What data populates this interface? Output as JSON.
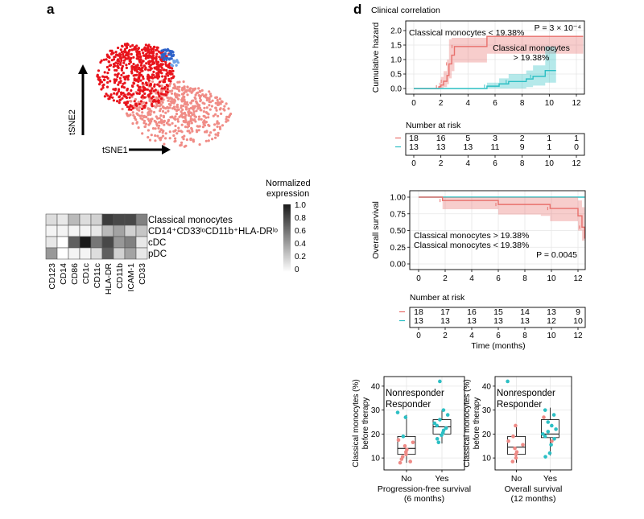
{
  "panels": {
    "a": "a",
    "d": "d"
  },
  "tsne": {
    "xlabel": "tSNE1",
    "ylabel": "tSNE2",
    "colors": {
      "classical": "#e8141c",
      "intermediate": "#f08c86",
      "cdc": "#2e62c9",
      "pdc": "#6fa3e8"
    }
  },
  "heatmap": {
    "legend_title_1": "Normalized",
    "legend_title_2": "expression",
    "legend_ticks": [
      "1.0",
      "0.8",
      "0.6",
      "0.4",
      "0.2",
      "0"
    ],
    "rows": [
      {
        "label": "Classical monocytes",
        "color": "#d91a1a"
      },
      {
        "label": "CD14⁺CD33ˡᵒCD11b⁺HLA-DRˡᵒ",
        "color": "#ee8a86"
      },
      {
        "label": "cDC",
        "color": "#2e62c9"
      },
      {
        "label": "pDC",
        "color": "#6fa3e8"
      }
    ],
    "columns": [
      "CD123",
      "CD14",
      "CD86",
      "CD1c",
      "CD11c",
      "HLA-DR",
      "CD11b",
      "ICAM-1",
      "CD33"
    ],
    "values": [
      [
        0.15,
        0.1,
        0.3,
        0.15,
        0.2,
        0.85,
        0.8,
        0.8,
        0.55
      ],
      [
        0.05,
        0.05,
        0.05,
        0.05,
        0.1,
        0.3,
        0.4,
        0.2,
        0.25
      ],
      [
        0.1,
        0.0,
        0.7,
        1.0,
        0.6,
        0.8,
        0.45,
        0.55,
        0.1
      ],
      [
        0.45,
        0.0,
        0.05,
        0.05,
        0.15,
        0.7,
        0.2,
        0.4,
        0.1
      ]
    ]
  },
  "clinical_title": "Clinical correlation",
  "chart_data": [
    {
      "type": "line",
      "subtype": "kaplan-meier-cumulative-hazard",
      "ylabel": "Cumulative hazard",
      "xlim": [
        0,
        12
      ],
      "ylim": [
        0,
        2.0
      ],
      "xticks": [
        "0",
        "2",
        "4",
        "6",
        "8",
        "10",
        "12"
      ],
      "yticks": [
        "0.0",
        "0.5",
        "1.0",
        "1.5",
        "2.0"
      ],
      "annotation": "P = 3 × 10⁻⁴",
      "series": [
        {
          "name": "Classical monocytes < 19.38%",
          "color": "#e8706c",
          "x": [
            0,
            1.85,
            2.0,
            2.2,
            2.45,
            2.6,
            2.8,
            3.0,
            5.4,
            12.5
          ],
          "y": [
            0,
            0.06,
            0.12,
            0.25,
            0.45,
            0.85,
            1.15,
            1.45,
            1.8,
            1.8
          ],
          "ci_upper": [
            0,
            0.2,
            0.4,
            0.6,
            1.0,
            1.7,
            1.75,
            1.75,
            1.8,
            1.8
          ],
          "ci_lower": [
            0,
            0.0,
            0.0,
            0.05,
            0.15,
            0.35,
            0.6,
            0.9,
            1.2,
            1.2
          ]
        },
        {
          "name": "Classical monocytes > 19.38%",
          "color": "#2cbfc4",
          "x": [
            0,
            5.4,
            6.3,
            7.0,
            8.3,
            8.8,
            9.7,
            10.5
          ],
          "y": [
            0,
            0.08,
            0.16,
            0.24,
            0.33,
            0.42,
            0.62,
            0.62
          ],
          "ci_upper": [
            0,
            0.2,
            0.35,
            0.5,
            0.62,
            0.8,
            1.45,
            1.45
          ],
          "ci_lower": [
            0,
            0,
            0,
            0,
            0.05,
            0.1,
            0.2,
            0.2
          ]
        }
      ],
      "risk_table": {
        "title": "Number at risk",
        "times": [
          0,
          2,
          4,
          6,
          8,
          10,
          12
        ],
        "rows": [
          {
            "color": "#e8706c",
            "values": [
              "18",
              "16",
              "5",
              "3",
              "2",
              "1",
              "1"
            ]
          },
          {
            "color": "#2cbfc4",
            "values": [
              "13",
              "13",
              "13",
              "11",
              "9",
              "1",
              "0"
            ]
          }
        ]
      }
    },
    {
      "type": "line",
      "subtype": "kaplan-meier-overall-survival",
      "ylabel": "Overall survival",
      "xlabel": "Time (months)",
      "xlim": [
        0,
        12
      ],
      "ylim": [
        0,
        1.0
      ],
      "xticks": [
        "0",
        "2",
        "4",
        "6",
        "8",
        "10",
        "12"
      ],
      "yticks": [
        "0.00",
        "0.25",
        "0.50",
        "0.75",
        "1.00"
      ],
      "annotation": "P = 0.0045",
      "series": [
        {
          "name": "Classical monocytes > 19.38%",
          "color": "#2cbfc4",
          "x": [
            0,
            12.5
          ],
          "y": [
            1.0,
            1.0
          ]
        },
        {
          "name": "Classical monocytes < 19.38%",
          "color": "#e8706c",
          "x": [
            0,
            1.8,
            5.5,
            6.0,
            9.2,
            9.9,
            12.0,
            12.3,
            12.5
          ],
          "y": [
            1.0,
            0.95,
            0.95,
            0.89,
            0.89,
            0.83,
            0.72,
            0.55,
            0.38
          ],
          "ci_upper": [
            1.0,
            1.0,
            1.0,
            1.0,
            1.0,
            1.0,
            0.95,
            0.85,
            0.75
          ],
          "ci_lower": [
            1.0,
            0.82,
            0.82,
            0.74,
            0.72,
            0.64,
            0.5,
            0.35,
            0.2
          ]
        }
      ],
      "risk_table": {
        "title": "Number at risk",
        "times": [
          0,
          2,
          4,
          6,
          8,
          10,
          12
        ],
        "rows": [
          {
            "color": "#e8706c",
            "values": [
              "18",
              "17",
              "16",
              "15",
              "14",
              "13",
              "9"
            ]
          },
          {
            "color": "#2cbfc4",
            "values": [
              "13",
              "13",
              "13",
              "13",
              "13",
              "12",
              "10"
            ]
          }
        ]
      }
    },
    {
      "type": "box",
      "ylabel_1": "Classical monocytes (%)",
      "ylabel_2": "before therapy",
      "xlabel_1": "Progression-free survival",
      "xlabel_2": "(6 months)",
      "categories": [
        "No",
        "Yes"
      ],
      "ylim": [
        5,
        44
      ],
      "yticks": [
        "10",
        "20",
        "30",
        "40"
      ],
      "legend": [
        {
          "label": "Nonresponder",
          "color": "#ee8a86"
        },
        {
          "label": "Responder",
          "color": "#2cbfc4"
        }
      ],
      "boxes": [
        {
          "q1": 11.5,
          "median": 14,
          "q3": 19,
          "whisker_low": 8,
          "whisker_high": 28
        },
        {
          "q1": 20,
          "median": 23,
          "q3": 26,
          "whisker_low": 16,
          "whisker_high": 30
        }
      ],
      "points": [
        {
          "cat": 0,
          "y": 29,
          "color": "#2cbfc4"
        },
        {
          "cat": 0,
          "y": 27,
          "color": "#2cbfc4"
        },
        {
          "cat": 0,
          "y": 19,
          "color": "#2cbfc4"
        },
        {
          "cat": 0,
          "y": 17.5,
          "color": "#ee8a86"
        },
        {
          "cat": 0,
          "y": 16.5,
          "color": "#ee8a86"
        },
        {
          "cat": 0,
          "y": 15,
          "color": "#ee8a86"
        },
        {
          "cat": 0,
          "y": 13.5,
          "color": "#ee8a86"
        },
        {
          "cat": 0,
          "y": 12.5,
          "color": "#ee8a86"
        },
        {
          "cat": 0,
          "y": 11.5,
          "color": "#ee8a86"
        },
        {
          "cat": 0,
          "y": 10.5,
          "color": "#ee8a86"
        },
        {
          "cat": 0,
          "y": 9.5,
          "color": "#ee8a86"
        },
        {
          "cat": 0,
          "y": 8.5,
          "color": "#ee8a86"
        },
        {
          "cat": 0,
          "y": 8,
          "color": "#ee8a86"
        },
        {
          "cat": 1,
          "y": 42,
          "color": "#2cbfc4"
        },
        {
          "cat": 1,
          "y": 30,
          "color": "#2cbfc4"
        },
        {
          "cat": 1,
          "y": 28,
          "color": "#2cbfc4"
        },
        {
          "cat": 1,
          "y": 26,
          "color": "#2cbfc4"
        },
        {
          "cat": 1,
          "y": 24.5,
          "color": "#2cbfc4"
        },
        {
          "cat": 1,
          "y": 23.5,
          "color": "#2cbfc4"
        },
        {
          "cat": 1,
          "y": 22.5,
          "color": "#2cbfc4"
        },
        {
          "cat": 1,
          "y": 21.5,
          "color": "#2cbfc4"
        },
        {
          "cat": 1,
          "y": 20.5,
          "color": "#2cbfc4"
        },
        {
          "cat": 1,
          "y": 19.5,
          "color": "#2cbfc4"
        },
        {
          "cat": 1,
          "y": 18,
          "color": "#2cbfc4"
        },
        {
          "cat": 1,
          "y": 16.5,
          "color": "#2cbfc4"
        }
      ]
    },
    {
      "type": "box",
      "ylabel_1": "Classical monocytes (%)",
      "ylabel_2": "before therapy",
      "xlabel_1": "Overall survival",
      "xlabel_2": "(12 months)",
      "categories": [
        "No",
        "Yes"
      ],
      "ylim": [
        5,
        44
      ],
      "yticks": [
        "10",
        "20",
        "30",
        "40"
      ],
      "legend": [
        {
          "label": "Nonresponder",
          "color": "#ee8a86"
        },
        {
          "label": "Responder",
          "color": "#2cbfc4"
        }
      ],
      "boxes": [
        {
          "q1": 11.5,
          "median": 14.5,
          "q3": 19,
          "whisker_low": 8,
          "whisker_high": 24
        },
        {
          "q1": 18.5,
          "median": 20,
          "q3": 26,
          "whisker_low": 11,
          "whisker_high": 31
        }
      ],
      "points": [
        {
          "cat": 0,
          "y": 42,
          "color": "#2cbfc4"
        },
        {
          "cat": 0,
          "y": 23.5,
          "color": "#ee8a86"
        },
        {
          "cat": 0,
          "y": 19,
          "color": "#ee8a86"
        },
        {
          "cat": 0,
          "y": 17,
          "color": "#ee8a86"
        },
        {
          "cat": 0,
          "y": 15.5,
          "color": "#ee8a86"
        },
        {
          "cat": 0,
          "y": 14,
          "color": "#ee8a86"
        },
        {
          "cat": 0,
          "y": 12.5,
          "color": "#ee8a86"
        },
        {
          "cat": 0,
          "y": 11.5,
          "color": "#ee8a86"
        },
        {
          "cat": 0,
          "y": 10,
          "color": "#ee8a86"
        },
        {
          "cat": 0,
          "y": 8.5,
          "color": "#ee8a86"
        },
        {
          "cat": 1,
          "y": 30,
          "color": "#2cbfc4"
        },
        {
          "cat": 1,
          "y": 28,
          "color": "#2cbfc4"
        },
        {
          "cat": 1,
          "y": 27,
          "color": "#ee8a86"
        },
        {
          "cat": 1,
          "y": 25,
          "color": "#2cbfc4"
        },
        {
          "cat": 1,
          "y": 23.5,
          "color": "#2cbfc4"
        },
        {
          "cat": 1,
          "y": 22,
          "color": "#2cbfc4"
        },
        {
          "cat": 1,
          "y": 21,
          "color": "#2cbfc4"
        },
        {
          "cat": 1,
          "y": 20,
          "color": "#2cbfc4"
        },
        {
          "cat": 1,
          "y": 19,
          "color": "#2cbfc4"
        },
        {
          "cat": 1,
          "y": 18,
          "color": "#2cbfc4"
        },
        {
          "cat": 1,
          "y": 17,
          "color": "#ee8a86"
        },
        {
          "cat": 1,
          "y": 15.5,
          "color": "#2cbfc4"
        },
        {
          "cat": 1,
          "y": 12,
          "color": "#2cbfc4"
        },
        {
          "cat": 1,
          "y": 10.5,
          "color": "#2cbfc4"
        }
      ]
    }
  ]
}
